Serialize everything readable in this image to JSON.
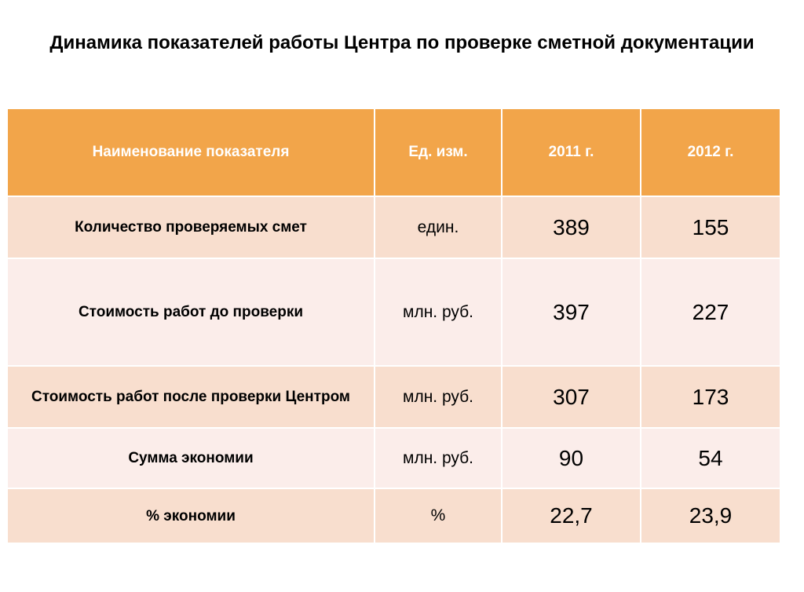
{
  "title": "Динамика показателей работы Центра по проверке сметной документации",
  "table": {
    "headers": [
      "Наименование показателя",
      "Ед. изм.",
      "2011 г.",
      "2012 г."
    ],
    "rows": [
      {
        "name": "Количество проверяемых смет",
        "unit": "един.",
        "y2011": "389",
        "y2012": "155"
      },
      {
        "name": "Стоимость работ до проверки",
        "unit": "млн. руб.",
        "y2011": "397",
        "y2012": "227"
      },
      {
        "name": "Стоимость работ после проверки Центром",
        "unit": "млн. руб.",
        "y2011": "307",
        "y2012": "173"
      },
      {
        "name": "Сумма экономии",
        "unit": "млн. руб.",
        "y2011": "90",
        "y2012": "54"
      },
      {
        "name": "% экономии",
        "unit": "%",
        "y2011": "22,7",
        "y2012": "23,9"
      }
    ]
  },
  "colors": {
    "header_bg": "#f2a54a",
    "row_dark": "#f8dece",
    "row_light": "#fbedea"
  }
}
